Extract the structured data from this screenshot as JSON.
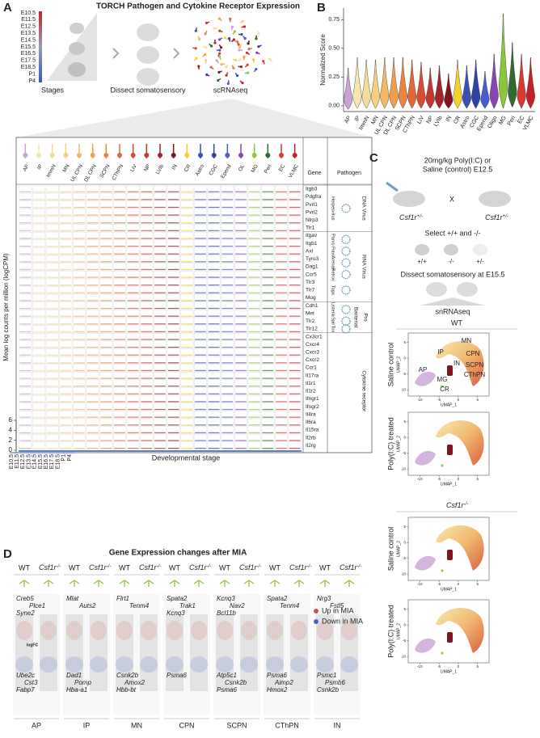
{
  "panel_a": {
    "letter": "A",
    "title": "TORCH Pathogen and Cytokine Receptor Expression",
    "stages": [
      "E10.5",
      "E11.5",
      "E12.5",
      "E13.5",
      "E14.5",
      "E15.5",
      "E16.5",
      "E17.5",
      "E18.5",
      "P1",
      "P4"
    ],
    "stages_label": "Stages",
    "dissect_label": "Dissect somatosensory",
    "scrnaseq_label": "scRNAseq",
    "cell_types": [
      "AP",
      "IP",
      "ImmN",
      "MN",
      "UL CPN",
      "DL CPN",
      "SCPN",
      "CThPN",
      "LiV",
      "NP",
      "LVIb",
      "IN",
      "CR",
      "Astro",
      "CGC",
      "Epend",
      "OL",
      "MG",
      "Peri",
      "EC",
      "VLMC"
    ],
    "cell_colors": [
      "#c9a3d4",
      "#f7e6b0",
      "#f5dc9a",
      "#f4cf80",
      "#f2b865",
      "#ef9f4c",
      "#ea8540",
      "#e2683a",
      "#d44e33",
      "#c2372f",
      "#a2242a",
      "#7d1620",
      "#f2d12e",
      "#3b4fb8",
      "#2f43a5",
      "#4a5cc8",
      "#8846b0",
      "#8cc63e",
      "#2f6b2c",
      "#d83a32",
      "#c4222a"
    ],
    "gene_header": "Gene",
    "pathogen_header": "Pathogen",
    "genes": [
      "Itgb3",
      "Pdgfra",
      "Pvrl1",
      "Pvrl2",
      "Nlrp3",
      "Tlr1",
      "Itgav",
      "Itgb1",
      "Axl",
      "Tyro3",
      "Dag1",
      "Ccr5",
      "Tlr3",
      "Tlr7",
      "Mog",
      "Cdh1",
      "Met",
      "Tlr2",
      "Tlr12",
      "Cx3cr1",
      "Cxcr4",
      "Cxcr3",
      "Cxcr2",
      "Ccr1",
      "Il17ra",
      "Il1r1",
      "Il1r2",
      "Ifngr1",
      "Ifngr2",
      "Il4ra",
      "Il6ra",
      "Il15ra",
      "Il2rb",
      "Il2rg"
    ],
    "pathogen_inner": [
      "Herpesvirus",
      "Parvo",
      "Flavi",
      "Arenav",
      "Retrov",
      "Toga",
      "Listeria",
      "Spir",
      "Tox"
    ],
    "pathogen_outer": [
      "DNA Virus",
      "RNA Virus",
      "Bacterial",
      "Pro",
      "Cytokine receptor"
    ],
    "y_label": "Mean log counts per million (logCPM)",
    "ylim": [
      0,
      6
    ],
    "yticks": [
      0,
      2,
      4,
      6
    ],
    "x_label": "Developmental stage"
  },
  "chart_data": {
    "type": "violin",
    "letter": "B",
    "y_label": "Normalized Score",
    "categories": [
      "AP",
      "IP",
      "ImmN",
      "MN",
      "UL CPN",
      "DL CPN",
      "SCPN",
      "CThPN",
      "LiV",
      "NP",
      "LVIb",
      "IN",
      "CR",
      "Astro",
      "CGC",
      "Epend",
      "Oligo",
      "MG",
      "Peri",
      "EC",
      "VLMC"
    ],
    "colors": [
      "#c9a3d4",
      "#f7e6b0",
      "#f5dc9a",
      "#f4cf80",
      "#f2b865",
      "#ef9f4c",
      "#ea8540",
      "#e2683a",
      "#d44e33",
      "#c2372f",
      "#a2242a",
      "#7d1620",
      "#f2d12e",
      "#3b4fb8",
      "#2f43a5",
      "#4a5cc8",
      "#8846b0",
      "#8cc63e",
      "#2f6b2c",
      "#d83a32",
      "#c4222a"
    ],
    "values": [
      0.33,
      0.42,
      0.4,
      0.4,
      0.42,
      0.42,
      0.42,
      0.4,
      0.38,
      0.33,
      0.35,
      0.28,
      0.4,
      0.35,
      0.4,
      0.3,
      0.45,
      0.8,
      0.55,
      0.45,
      0.42
    ],
    "min_values": [
      -0.03,
      -0.02,
      -0.02,
      -0.02,
      -0.02,
      -0.02,
      -0.02,
      -0.02,
      -0.02,
      -0.02,
      -0.02,
      -0.02,
      -0.02,
      -0.02,
      -0.02,
      -0.02,
      -0.02,
      -0.02,
      -0.01,
      -0.02,
      -0.02
    ],
    "ylim": [
      -0.05,
      0.85
    ],
    "yticks": [
      {
        "value": 0,
        "label": "0.00"
      },
      {
        "value": 0.25,
        "label": "0.25"
      },
      {
        "value": 0.5,
        "label": "0.50"
      },
      {
        "value": 0.75,
        "label": "0.75"
      }
    ]
  },
  "panel_c": {
    "letter": "C",
    "treatment_line1": "20mg/kg Poly(I:C) or",
    "treatment_line2": "Saline (control) E12.5",
    "cross": "X",
    "gene": "Csf1r",
    "het": "+/-",
    "select": "Select +/+ and -/-",
    "pups": [
      "+/+",
      "-/-",
      "+/-"
    ],
    "dissect": "Dissect somatosensory at E15.5",
    "snrnaseq": "snRNAseq",
    "wt": "WT",
    "ko_sup": "-/-",
    "conditions": [
      "Saline control",
      "Poly(I:C) treated"
    ],
    "clusters": [
      "MN",
      "IP",
      "CPN",
      "AP",
      "IN",
      "SCPN",
      "MG",
      "CThPN",
      "CR"
    ],
    "umap": {
      "x_label": "UMAP_1",
      "y_label": "UMAP_2",
      "xlim": [
        -13,
        8
      ],
      "ylim": [
        -12,
        8
      ],
      "xticks": [
        -10,
        -5,
        0,
        5
      ],
      "yticks": [
        -10,
        -5,
        0,
        5
      ]
    }
  },
  "panel_d": {
    "letter": "D",
    "title": "Gene Expression changes after MIA",
    "wt": "WT",
    "ko": "Csf1r",
    "ko_sup": "-/-",
    "y_label": "logFC",
    "legend": [
      "Up in MIA",
      "Down in MIA"
    ],
    "groups": [
      {
        "name": "AP",
        "up_genes": [
          "Creb5",
          "Plce1",
          "Syne2"
        ],
        "down_genes": [
          "Ube2c",
          "Cst3",
          "Fabp7"
        ]
      },
      {
        "name": "IP",
        "up_genes": [
          "Mlat",
          "Auts2"
        ],
        "down_genes": [
          "Dad1",
          "Pomp",
          "Hba-a1"
        ]
      },
      {
        "name": "MN",
        "up_genes": [
          "Flrt1",
          "Tenm4"
        ],
        "down_genes": [
          "Csnk2b",
          "Amox2",
          "Hbb-bt"
        ]
      },
      {
        "name": "CPN",
        "up_genes": [
          "Spata2",
          "Trak1",
          "Kcnq3"
        ],
        "down_genes": [
          "Psma6"
        ]
      },
      {
        "name": "SCPN",
        "up_genes": [
          "Kcnq3",
          "Nav2",
          "Bcl11b"
        ],
        "down_genes": [
          "Atp5c1",
          "Csnk2b",
          "Psma6"
        ]
      },
      {
        "name": "CThPN",
        "up_genes": [
          "Spata2",
          "Tenm4"
        ],
        "down_genes": [
          "Psma6",
          "Aimp2",
          "Hmox2"
        ]
      },
      {
        "name": "IN",
        "up_genes": [
          "Nrg3",
          "Fstl5"
        ],
        "down_genes": [
          "Psmc1",
          "Psmb6",
          "Csnk2b"
        ]
      }
    ]
  }
}
